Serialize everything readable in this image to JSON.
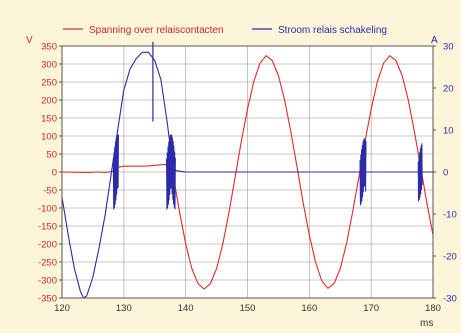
{
  "chart_data": {
    "type": "line",
    "title": "",
    "xlabel": "ms",
    "ylabel_left": "V",
    "ylabel_right": "A",
    "xlim": [
      120,
      180
    ],
    "ylim_left": [
      -350,
      350
    ],
    "ylim_right": [
      -30,
      30
    ],
    "x_ticks": [
      120,
      130,
      140,
      150,
      160,
      170,
      180
    ],
    "y_left_ticks": [
      350,
      300,
      250,
      200,
      150,
      100,
      50,
      0,
      -50,
      -100,
      -150,
      -200,
      -250,
      -300,
      -350
    ],
    "y_right_ticks": [
      30,
      20,
      10,
      0,
      -10,
      -20,
      -30
    ],
    "grid": true,
    "legend_placement": "top",
    "colors": {
      "background": "#fdf5d9",
      "plot_background": "#ffffff",
      "grid": "#b5b5b5",
      "axis": "#555555"
    },
    "series": [
      {
        "name": "Spanning over relaiscontacten",
        "axis": "left",
        "color": "#e02b2b",
        "x": [
          120,
          124,
          126,
          127,
          128,
          128.6,
          129,
          130,
          132,
          134,
          136,
          136.9,
          137.2,
          137.7,
          138.2,
          139,
          140,
          141,
          142,
          143,
          144,
          145,
          146,
          147,
          148,
          149,
          150,
          151,
          152,
          153,
          154,
          155,
          156,
          157,
          158,
          159,
          160,
          161,
          162,
          163,
          164,
          165,
          166,
          167,
          168,
          169,
          170,
          171,
          172,
          173,
          174,
          175,
          176,
          177,
          178,
          179,
          180
        ],
        "y": [
          0,
          -1,
          0,
          -1,
          1,
          4,
          13,
          16,
          16,
          17,
          20,
          21,
          2,
          0,
          -30,
          -110,
          -200,
          -268,
          -310,
          -325,
          -310,
          -268,
          -200,
          -112,
          -15,
          85,
          175,
          250,
          302,
          323,
          310,
          268,
          200,
          112,
          15,
          -85,
          -175,
          -250,
          -302,
          -323,
          -310,
          -268,
          -200,
          -112,
          -15,
          85,
          175,
          250,
          302,
          323,
          310,
          268,
          200,
          112,
          15,
          -85,
          -175
        ]
      },
      {
        "name": "Stroom relais schakeling",
        "axis": "right",
        "color": "#2b2ba8",
        "x": [
          120,
          121,
          122,
          123,
          123.5,
          124,
          125,
          126,
          127,
          128,
          129,
          130,
          131,
          132,
          133,
          134,
          135,
          136,
          137,
          137.6,
          138,
          138.5,
          140,
          145,
          150,
          155,
          160,
          165,
          170,
          175,
          180
        ],
        "y": [
          -6,
          -15,
          -23,
          -28.5,
          -30,
          -29.5,
          -25,
          -18,
          -10,
          0,
          10,
          19.5,
          24.5,
          27,
          28.5,
          28.5,
          26.5,
          22,
          12,
          5,
          1,
          0.3,
          0,
          0,
          0,
          0,
          0,
          0,
          0,
          0,
          0
        ]
      }
    ]
  }
}
